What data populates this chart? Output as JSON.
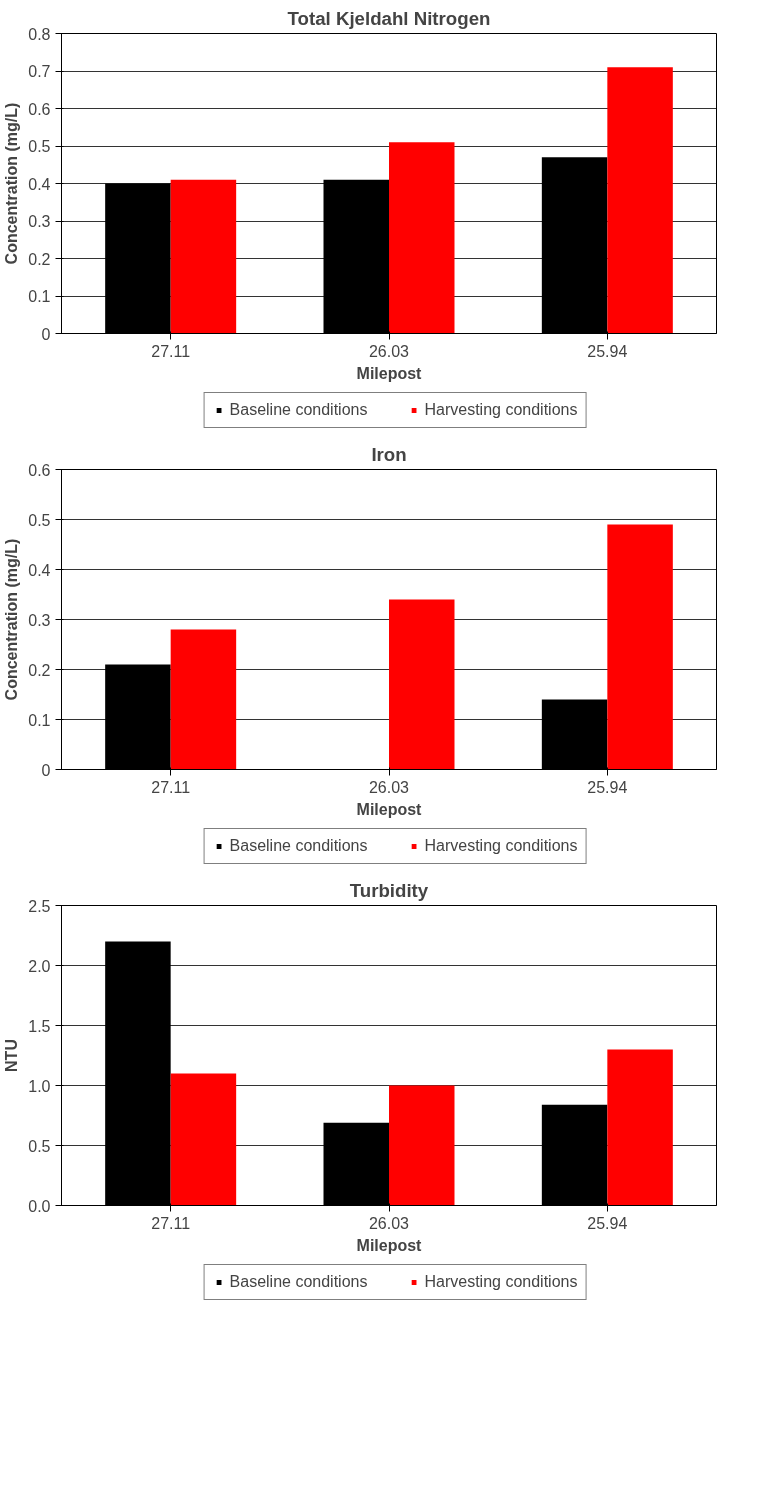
{
  "chart_data": [
    {
      "type": "bar",
      "title": "Total Kjeldahl Nitrogen",
      "xlabel": "Milepost",
      "ylabel": "Concentration (mg/L)",
      "categories": [
        "27.11",
        "26.03",
        "25.94"
      ],
      "series": [
        {
          "name": "Baseline conditions",
          "color": "#000000",
          "values": [
            0.4,
            0.41,
            0.47
          ]
        },
        {
          "name": "Harvesting conditions",
          "color": "#ff0000",
          "values": [
            0.41,
            0.51,
            0.71
          ]
        }
      ],
      "ylim": [
        0,
        0.8
      ],
      "yticks": [
        0,
        0.1,
        0.2,
        0.3,
        0.4,
        0.5,
        0.6,
        0.7,
        0.8
      ],
      "grid": "y",
      "legend": "bottom"
    },
    {
      "type": "bar",
      "title": "Iron",
      "xlabel": "Milepost",
      "ylabel": "Concentration (mg/L)",
      "categories": [
        "27.11",
        "26.03",
        "25.94"
      ],
      "series": [
        {
          "name": "Baseline conditions",
          "color": "#000000",
          "values": [
            0.21,
            0,
            0.14
          ]
        },
        {
          "name": "Harvesting conditions",
          "color": "#ff0000",
          "values": [
            0.28,
            0.34,
            0.49
          ]
        }
      ],
      "ylim": [
        0,
        0.6
      ],
      "yticks": [
        0,
        0.1,
        0.2,
        0.3,
        0.4,
        0.5,
        0.6
      ],
      "grid": "y",
      "legend": "bottom"
    },
    {
      "type": "bar",
      "title": "Turbidity",
      "xlabel": "Milepost",
      "ylabel": "NTU",
      "categories": [
        "27.11",
        "26.03",
        "25.94"
      ],
      "series": [
        {
          "name": "Baseline conditions",
          "color": "#000000",
          "values": [
            2.2,
            0.69,
            0.84
          ]
        },
        {
          "name": "Harvesting conditions",
          "color": "#ff0000",
          "values": [
            1.1,
            1.0,
            1.3
          ]
        }
      ],
      "ylim": [
        0,
        2.5
      ],
      "yticks": [
        {
          "value": 0,
          "label": "0.0"
        },
        {
          "value": 0.5,
          "label": "0.5"
        },
        {
          "value": 1,
          "label": "1.0"
        },
        {
          "value": 1.5,
          "label": "1.5"
        },
        {
          "value": 2,
          "label": "2.0"
        },
        {
          "value": 2.5,
          "label": "2.5"
        }
      ],
      "grid": "y",
      "legend": "bottom"
    }
  ]
}
